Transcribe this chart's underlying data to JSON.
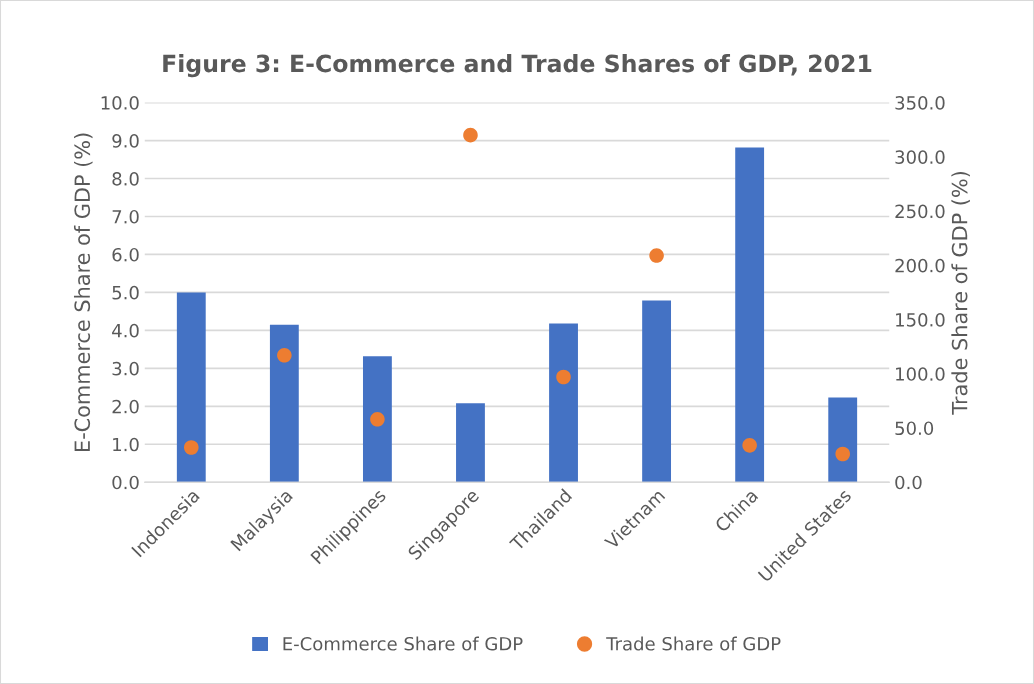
{
  "chart_data": {
    "type": "bar",
    "title": "Figure 3: E-Commerce and Trade Shares of GDP, 2021",
    "categories": [
      "Indonesia",
      "Malaysia",
      "Philippines",
      "Singapore",
      "Thailand",
      "Vietnam",
      "China",
      "United States"
    ],
    "series": [
      {
        "name": "E-Commerce Share of GDP",
        "color": "#4472c4",
        "values": [
          5.0,
          4.15,
          3.32,
          2.08,
          4.18,
          4.79,
          8.82,
          2.23
        ]
      },
      {
        "name": "Trade Share of GDP",
        "type": "scatter",
        "axis": "y2",
        "color": "#ed7d31",
        "values": [
          32,
          117,
          58,
          320,
          97,
          209,
          34,
          26
        ]
      }
    ],
    "ylabel": "E-Commerce Share of GDP (%)",
    "y2label": "Trade Share of GDP (%)",
    "ylim": [
      0,
      10
    ],
    "yticks": [
      {
        "value": 0,
        "label": "0.0"
      },
      {
        "value": 1,
        "label": "1.0"
      },
      {
        "value": 2,
        "label": "2.0"
      },
      {
        "value": 3,
        "label": "3.0"
      },
      {
        "value": 4,
        "label": "4.0"
      },
      {
        "value": 5,
        "label": "5.0"
      },
      {
        "value": 6,
        "label": "6.0"
      },
      {
        "value": 7,
        "label": "7.0"
      },
      {
        "value": 8,
        "label": "8.0"
      },
      {
        "value": 9,
        "label": "9.0"
      },
      {
        "value": 10,
        "label": "10.0"
      }
    ],
    "y2lim": [
      0,
      350
    ],
    "y2ticks": [
      {
        "value": 0,
        "label": "0.0"
      },
      {
        "value": 50,
        "label": "50.0"
      },
      {
        "value": 100,
        "label": "100.0"
      },
      {
        "value": 150,
        "label": "150.0"
      },
      {
        "value": 200,
        "label": "200.0"
      },
      {
        "value": 250,
        "label": "250.0"
      },
      {
        "value": 300,
        "label": "300.0"
      },
      {
        "value": 350,
        "label": "350.0"
      }
    ],
    "grid": "y",
    "legend": "bottom",
    "marker": "circle"
  }
}
